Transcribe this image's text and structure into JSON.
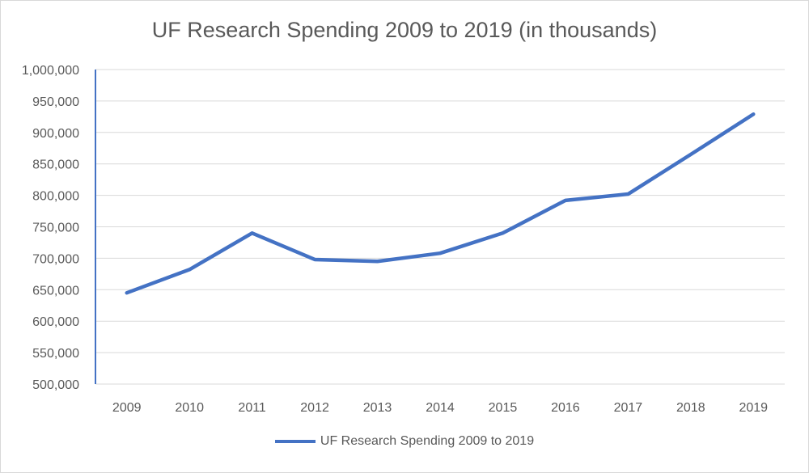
{
  "chart_data": {
    "type": "line",
    "title": "UF Research Spending 2009 to 2019 (in thousands)",
    "xlabel": "",
    "ylabel": "",
    "categories": [
      "2009",
      "2010",
      "2011",
      "2012",
      "2013",
      "2014",
      "2015",
      "2016",
      "2017",
      "2018",
      "2019"
    ],
    "series": [
      {
        "name": "UF Research Spending 2009 to 2019",
        "color": "#4472c4",
        "values": [
          645000,
          682000,
          740000,
          698000,
          695000,
          708000,
          740000,
          792000,
          802000,
          865000,
          929000
        ]
      }
    ],
    "ylim": [
      500000,
      1000000
    ],
    "yticks": [
      "500,000",
      "550,000",
      "600,000",
      "650,000",
      "700,000",
      "750,000",
      "800,000",
      "850,000",
      "900,000",
      "950,000",
      "1,000,000"
    ],
    "grid": true,
    "legend": "bottom"
  }
}
